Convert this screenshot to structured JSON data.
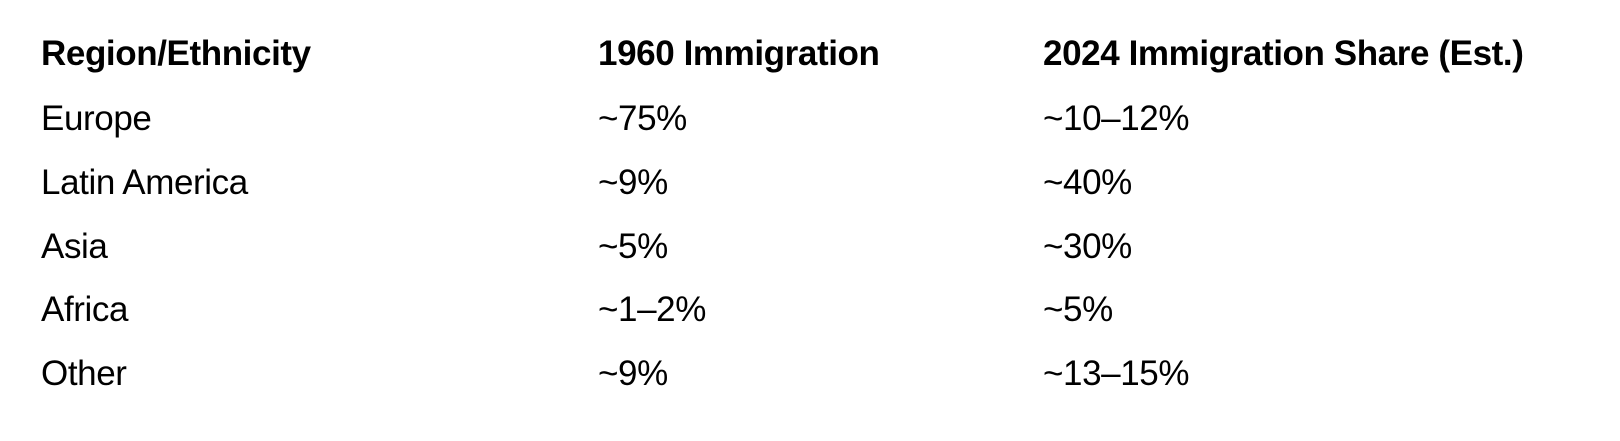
{
  "table": {
    "headers": [
      "Region/Ethnicity",
      "1960 Immigration",
      "2024 Immigration Share (Est.)"
    ],
    "rows": [
      [
        "Europe",
        "~75%",
        "~10–12%"
      ],
      [
        "Latin America",
        "~9%",
        "~40%"
      ],
      [
        "Asia",
        "~5%",
        "~30%"
      ],
      [
        "Africa",
        "~1–2%",
        "~5%"
      ],
      [
        "Other",
        "~9%",
        "~13–15%"
      ]
    ]
  }
}
